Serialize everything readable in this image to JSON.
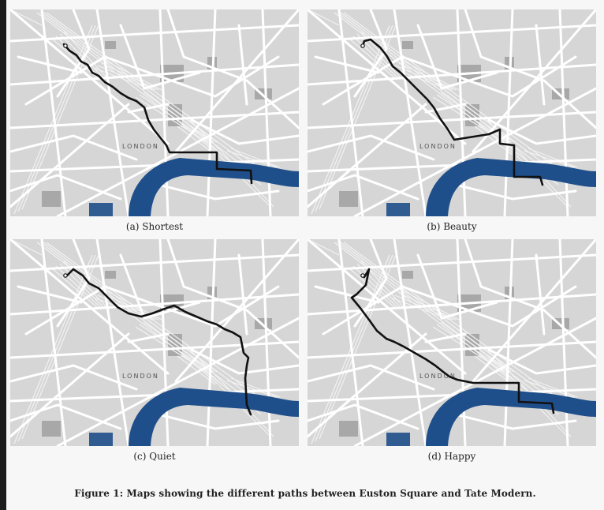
{
  "panels": [
    {
      "tag": "(a)",
      "label": "Shortest"
    },
    {
      "tag": "(b)",
      "label": "Beauty"
    },
    {
      "tag": "(c)",
      "label": "Quiet"
    },
    {
      "tag": "(d)",
      "label": "Happy"
    }
  ],
  "map_label": "LONDON",
  "figure_caption": "Figure 1: Maps showing the different paths between Euston Square and Tate Modern.",
  "colors": {
    "river": "#1f4f8a",
    "route": "#111111",
    "roads": "#ffffff",
    "land": "#d6d6d6"
  }
}
